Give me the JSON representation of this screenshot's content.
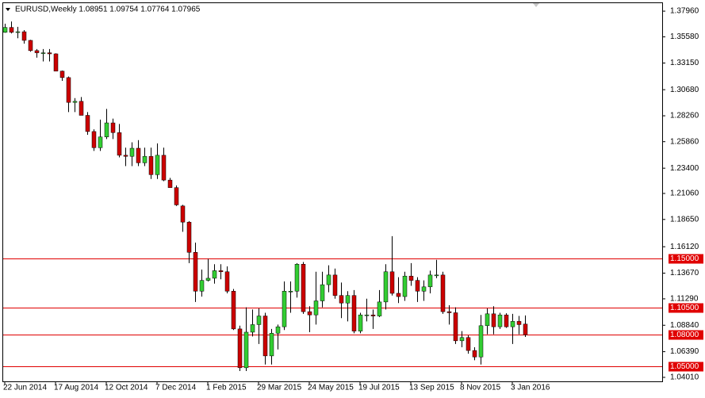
{
  "chart_data": {
    "type": "candlestick",
    "title": "EURUSD,Weekly  1.08951 1.09754 1.07764 1.07965",
    "categories": [
      "22 Jun 2014",
      null,
      null,
      null,
      null,
      null,
      null,
      null,
      "17 Aug 2014",
      null,
      null,
      null,
      null,
      null,
      null,
      null,
      "12 Oct 2014",
      null,
      null,
      null,
      null,
      null,
      null,
      null,
      "7 Dec 2014",
      null,
      null,
      null,
      null,
      null,
      null,
      null,
      "1 Feb 2015",
      null,
      null,
      null,
      null,
      null,
      null,
      null,
      "29 Mar 2015",
      null,
      null,
      null,
      null,
      null,
      null,
      null,
      "24 May 2015",
      null,
      null,
      null,
      null,
      null,
      null,
      null,
      "19 Jul 2015",
      null,
      null,
      null,
      null,
      null,
      null,
      null,
      "13 Sep 2015",
      null,
      null,
      null,
      null,
      null,
      null,
      null,
      "8 Nov 2015",
      null,
      null,
      null,
      null,
      null,
      null,
      null,
      "3 Jan 2016",
      null,
      null
    ],
    "open": [
      1.36,
      1.3645,
      1.36,
      1.3605,
      1.3525,
      1.343,
      1.341,
      1.341,
      1.34,
      1.324,
      1.318,
      1.295,
      1.296,
      1.283,
      1.268,
      1.253,
      1.263,
      1.276,
      1.267,
      1.246,
      1.245,
      1.2525,
      1.239,
      1.245,
      1.228,
      1.246,
      1.223,
      1.216,
      1.199,
      1.184,
      1.156,
      1.12,
      1.13,
      1.132,
      1.139,
      1.138,
      1.12,
      1.085,
      1.049,
      1.082,
      1.089,
      1.097,
      1.06,
      1.081,
      1.087,
      1.12,
      1.12,
      1.145,
      1.101,
      1.098,
      1.111,
      1.126,
      1.135,
      1.116,
      1.109,
      1.116,
      1.083,
      1.098,
      1.098,
      1.097,
      1.11,
      1.138,
      1.118,
      1.115,
      1.134,
      1.13,
      1.12,
      1.124,
      1.135,
      1.135,
      1.101,
      1.1,
      1.074,
      1.077,
      1.065,
      1.059,
      1.088,
      1.099,
      1.087,
      1.098,
      1.087,
      1.092,
      1.0895
    ],
    "high": [
      1.368,
      1.37,
      1.365,
      1.362,
      1.353,
      1.3445,
      1.3445,
      1.3445,
      1.3405,
      1.3245,
      1.319,
      1.299,
      1.3,
      1.286,
      1.27,
      1.279,
      1.289,
      1.28,
      1.275,
      1.253,
      1.258,
      1.26,
      1.253,
      1.253,
      1.257,
      1.253,
      1.225,
      1.218,
      1.2,
      1.185,
      1.165,
      1.14,
      1.15,
      1.145,
      1.145,
      1.143,
      1.122,
      1.088,
      1.105,
      1.103,
      1.104,
      1.1,
      1.085,
      1.089,
      1.129,
      1.129,
      1.146,
      1.147,
      1.106,
      1.138,
      1.138,
      1.144,
      1.141,
      1.128,
      1.12,
      1.121,
      1.1,
      1.113,
      1.103,
      1.121,
      1.145,
      1.171,
      1.133,
      1.138,
      1.146,
      1.133,
      1.13,
      1.139,
      1.149,
      1.138,
      1.107,
      1.105,
      1.083,
      1.079,
      1.068,
      1.098,
      1.104,
      1.106,
      1.1,
      1.0995,
      1.099,
      1.097,
      1.0975
    ],
    "low": [
      1.3595,
      1.359,
      1.3545,
      1.3495,
      1.342,
      1.3365,
      1.333,
      1.333,
      1.324,
      1.315,
      1.286,
      1.286,
      1.286,
      1.265,
      1.25,
      1.25,
      1.261,
      1.261,
      1.244,
      1.236,
      1.236,
      1.236,
      1.236,
      1.224,
      1.224,
      1.222,
      1.216,
      1.199,
      1.175,
      1.146,
      1.11,
      1.115,
      1.129,
      1.127,
      1.131,
      1.118,
      1.084,
      1.046,
      1.046,
      1.078,
      1.071,
      1.052,
      1.052,
      1.066,
      1.084,
      1.1,
      1.114,
      1.099,
      1.082,
      1.089,
      1.105,
      1.119,
      1.113,
      1.095,
      1.092,
      1.081,
      1.081,
      1.092,
      1.085,
      1.096,
      1.103,
      1.116,
      1.109,
      1.111,
      1.125,
      1.11,
      1.111,
      1.118,
      1.132,
      1.099,
      1.089,
      1.071,
      1.068,
      1.062,
      1.056,
      1.052,
      1.08,
      1.08,
      1.085,
      1.086,
      1.071,
      1.08,
      1.0776
    ],
    "close": [
      1.3645,
      1.36,
      1.3605,
      1.3525,
      1.343,
      1.341,
      1.341,
      1.34,
      1.324,
      1.318,
      1.295,
      1.296,
      1.283,
      1.268,
      1.253,
      1.263,
      1.276,
      1.267,
      1.246,
      1.245,
      1.2525,
      1.239,
      1.245,
      1.228,
      1.246,
      1.223,
      1.216,
      1.2,
      1.184,
      1.156,
      1.12,
      1.13,
      1.132,
      1.139,
      1.138,
      1.12,
      1.085,
      1.049,
      1.082,
      1.089,
      1.097,
      1.06,
      1.081,
      1.087,
      1.12,
      1.12,
      1.145,
      1.101,
      1.098,
      1.111,
      1.126,
      1.135,
      1.116,
      1.109,
      1.116,
      1.083,
      1.098,
      1.098,
      1.097,
      1.11,
      1.138,
      1.118,
      1.115,
      1.134,
      1.13,
      1.12,
      1.124,
      1.135,
      1.135,
      1.101,
      1.1,
      1.074,
      1.077,
      1.065,
      1.059,
      1.088,
      1.099,
      1.087,
      1.098,
      1.087,
      1.092,
      1.089,
      1.0797
    ],
    "up_color": "#32cd32",
    "down_color": "#cc0000",
    "ylim": [
      1.0364,
      1.387
    ],
    "yticks": [
      {
        "value": 1.0401,
        "label": "1.04010"
      },
      {
        "value": 1.0639,
        "label": "1.06390"
      },
      {
        "value": 1.0884,
        "label": "1.08840"
      },
      {
        "value": 1.1129,
        "label": "1.11290"
      },
      {
        "value": 1.1367,
        "label": "1.13670"
      },
      {
        "value": 1.1612,
        "label": "1.16120"
      },
      {
        "value": 1.1865,
        "label": "1.18650"
      },
      {
        "value": 1.2106,
        "label": "1.21060"
      },
      {
        "value": 1.234,
        "label": "1.23400"
      },
      {
        "value": 1.2586,
        "label": "1.25860"
      },
      {
        "value": 1.2826,
        "label": "1.28260"
      },
      {
        "value": 1.3068,
        "label": "1.30680"
      },
      {
        "value": 1.3315,
        "label": "1.33150"
      },
      {
        "value": 1.3558,
        "label": "1.35580"
      },
      {
        "value": 1.3796,
        "label": "1.37960"
      }
    ],
    "hlines": [
      {
        "value": 1.15,
        "label": "1.15000"
      },
      {
        "value": 1.105,
        "label": "1.10500"
      },
      {
        "value": 1.08,
        "label": "1.08000"
      },
      {
        "value": 1.05,
        "label": "1.05000"
      }
    ],
    "hline_color": "#e00000"
  }
}
